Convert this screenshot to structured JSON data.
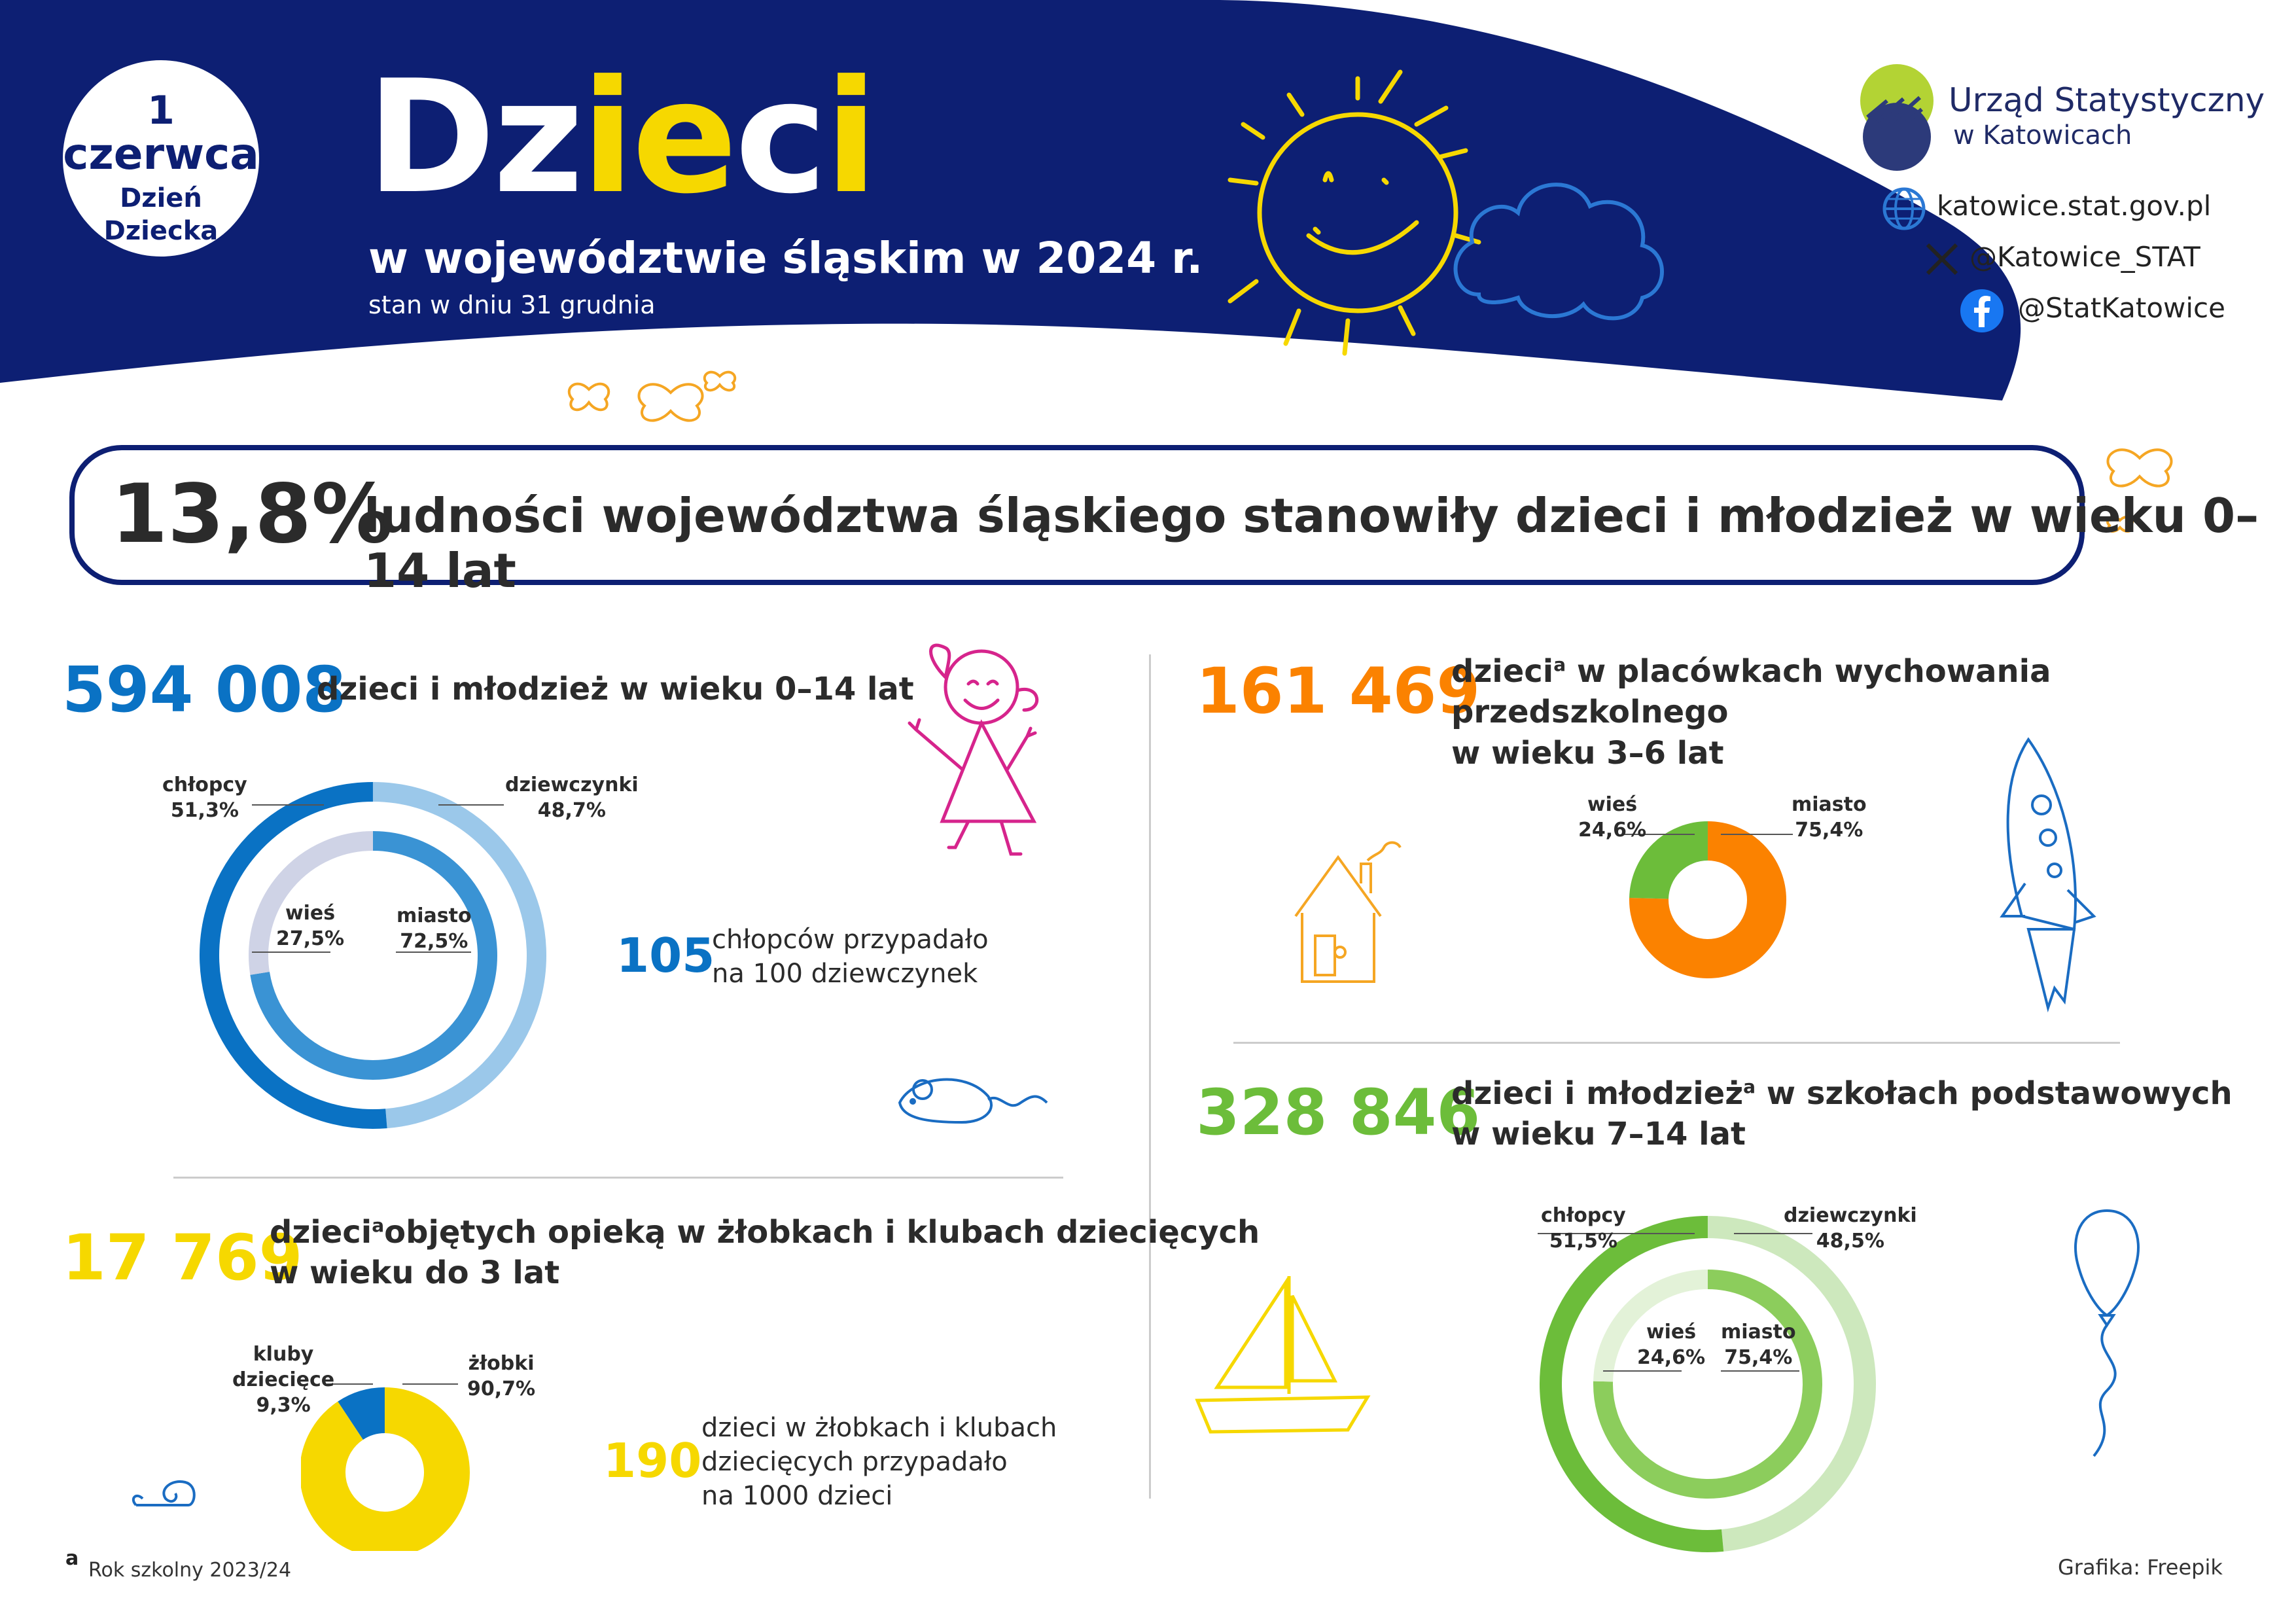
{
  "badge": {
    "day": "1",
    "month": "czerwca",
    "event_line1": "Dzień",
    "event_line2": "Dziecka"
  },
  "title": {
    "part1": "Dz",
    "part2": "ie",
    "part3": "c",
    "part4": "i"
  },
  "subtitle": "w województwie śląskim w 2024 r.",
  "subtitle2": "stan w dniu 31 grudnia",
  "logo": {
    "line1": "Urząd Statystyczny",
    "line2": "w Katowicach"
  },
  "contacts": {
    "web": "katowice.stat.gov.pl",
    "x": "@Katowice_STAT",
    "facebook": "@StatKatowice"
  },
  "headline": {
    "value": "13,8%",
    "text": "ludności województwa śląskiego stanowiły dzieci i młodzież w wieku 0–14 lat"
  },
  "section1": {
    "value": "594 008",
    "title": "dzieci i młodzież w wieku 0–14 lat",
    "outer_a_label": "chłopcy",
    "outer_a_value": "51,3%",
    "outer_b_label": "dziewczynki",
    "outer_b_value": "48,7%",
    "inner_a_label": "wieś",
    "inner_a_value": "27,5%",
    "inner_b_label": "miasto",
    "inner_b_value": "72,5%",
    "ratio_value": "105",
    "ratio_line1": "chłopców przypadało",
    "ratio_line2": "na 100 dziewczynek"
  },
  "section2": {
    "value": "17 769",
    "title_main": "dzieci",
    "title_sup": "a",
    "title_rest": "objętych opieką w żłobkach i klubach dziecięcych",
    "title_line2": "w wieku do 3 lat",
    "a_label1": "kluby",
    "a_label2": "dziecięce",
    "a_value": "9,3%",
    "b_label": "żłobki",
    "b_value": "90,7%",
    "ratio_value": "190",
    "ratio_line1": "dzieci w żłobkach i klubach",
    "ratio_line2": "dziecięcych przypadało",
    "ratio_line3": "na 1000 dzieci"
  },
  "section3": {
    "value": "161 469",
    "title_main": "dzieci",
    "title_sup": "a",
    "title_rest": " w placówkach wychowania przedszkolnego",
    "title_line2": "w wieku 3–6 lat",
    "a_label": "wieś",
    "a_value": "24,6%",
    "b_label": "miasto",
    "b_value": "75,4%"
  },
  "section4": {
    "value": "328 846",
    "title_main": "dzieci i młodzież",
    "title_sup": "a",
    "title_rest": " w szkołach podstawowych",
    "title_line2": "w wieku 7–14 lat",
    "outer_a_label": "chłopcy",
    "outer_a_value": "51,5%",
    "outer_b_label": "dziewczynki",
    "outer_b_value": "48,5%",
    "inner_a_label": "wieś",
    "inner_a_value": "24,6%",
    "inner_b_label": "miasto",
    "inner_b_value": "75,4%"
  },
  "footnote": {
    "mark": "a",
    "text": "Rok szkolny 2023/24"
  },
  "credit": "Grafika: Freepik",
  "chart_data": [
    {
      "type": "pie",
      "title": "594 008 dzieci i młodzież w wieku 0–14 lat (płeć)",
      "categories": [
        "chłopcy",
        "dziewczynki"
      ],
      "values": [
        51.3,
        48.7
      ]
    },
    {
      "type": "pie",
      "title": "594 008 dzieci i młodzież w wieku 0–14 lat (miejsce zamieszkania)",
      "categories": [
        "wieś",
        "miasto"
      ],
      "values": [
        27.5,
        72.5
      ]
    },
    {
      "type": "pie",
      "title": "17 769 dzieci w żłobkach i klubach dziecięcych",
      "categories": [
        "kluby dziecięce",
        "żłobki"
      ],
      "values": [
        9.3,
        90.7
      ]
    },
    {
      "type": "pie",
      "title": "161 469 dzieci w placówkach wychowania przedszkolnego",
      "categories": [
        "wieś",
        "miasto"
      ],
      "values": [
        24.6,
        75.4
      ]
    },
    {
      "type": "pie",
      "title": "328 846 dzieci i młodzież w szkołach podstawowych (płeć)",
      "categories": [
        "chłopcy",
        "dziewczynki"
      ],
      "values": [
        51.5,
        48.5
      ]
    },
    {
      "type": "pie",
      "title": "328 846 dzieci i młodzież w szkołach podstawowych (miejsce zamieszkania)",
      "categories": [
        "wieś",
        "miasto"
      ],
      "values": [
        24.6,
        75.4
      ]
    }
  ],
  "colors": {
    "navy": "#0d1f73",
    "yellow": "#f6d800",
    "blue_dark": "#0a72c4",
    "blue_light": "#9bc8ea",
    "blue_mid": "#3a93d4",
    "lavender": "#cfd3e6",
    "orange": "#fb8200",
    "green": "#6cbd3a",
    "green_light": "#cde8bd",
    "green_mid": "#8ccd5c",
    "green_pale": "#e3f2d8"
  }
}
